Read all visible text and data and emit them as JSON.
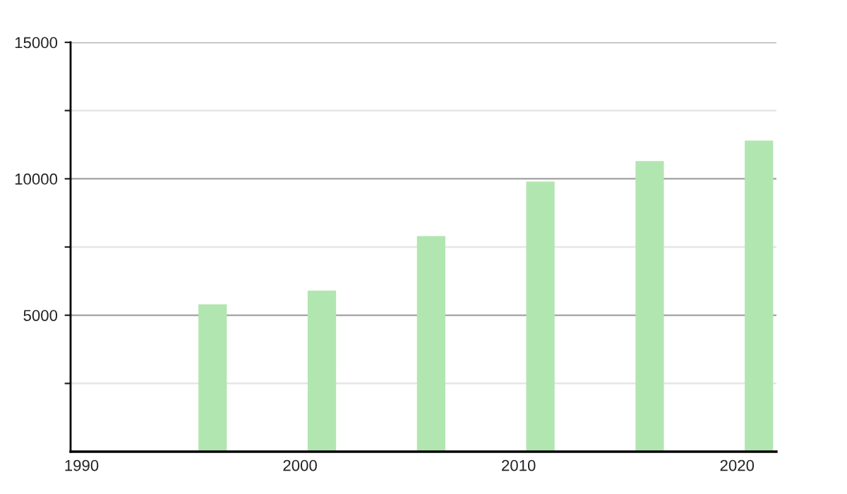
{
  "chart_data": {
    "type": "bar",
    "x": [
      1996,
      2001,
      2006,
      2011,
      2016,
      2021
    ],
    "values": [
      5400,
      5900,
      7900,
      9900,
      10650,
      11400
    ],
    "color": "#b2e6b0",
    "xlim": [
      1989.5,
      2021.8
    ],
    "xticks": [
      1990,
      2000,
      2010,
      2020
    ],
    "ylim": [
      0,
      15000
    ],
    "yticks": [
      {
        "value": 2500,
        "label": null
      },
      5000,
      {
        "value": 7500,
        "label": null
      },
      10000,
      {
        "value": 12500,
        "label": null
      },
      15000
    ],
    "grid": "y",
    "legend": false
  }
}
